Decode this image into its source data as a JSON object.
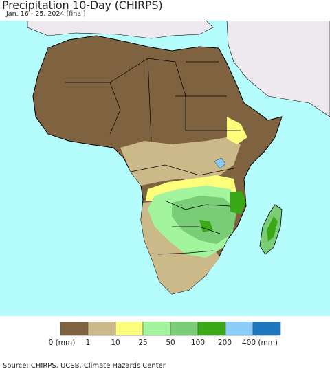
{
  "header": {
    "title": "Precipitation 10-Day (CHIRPS)",
    "subtitle": "Jan. 16 - 25, 2024 [final]"
  },
  "legend": {
    "labels": [
      "0 (mm)",
      "1",
      "10",
      "25",
      "50",
      "100",
      "200",
      "400 (mm)"
    ],
    "colors": [
      "#7f6341",
      "#cbb98a",
      "#fdfd7c",
      "#a2f59c",
      "#7acd77",
      "#3aa817",
      "#8acdfa",
      "#1f77bd"
    ]
  },
  "colors": {
    "ocean": "#b5fdfd",
    "non_africa_land": "#ede9ee",
    "border": "#000000"
  },
  "footer": {
    "source": "Source: CHIRPS, UCSB, Climate Hazards Center"
  }
}
